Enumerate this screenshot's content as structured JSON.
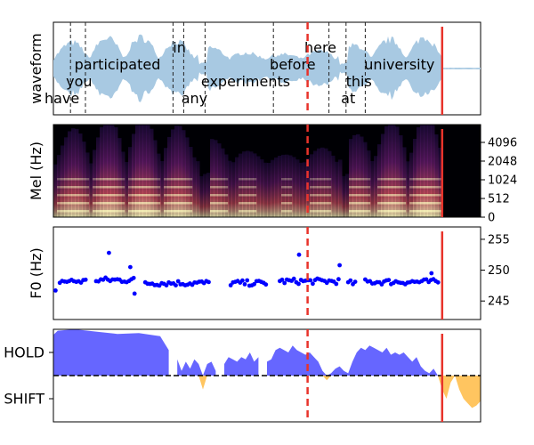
{
  "colors": {
    "waveform": "#a8c9e2",
    "word_boundary": "#222222",
    "current_time": "#e8332b",
    "prediction_marker": "#e8332b",
    "f0_points": "#0000ff",
    "hold_fill": "#6666ff",
    "shift_fill": "#ffc560",
    "spec_low": "#000004",
    "spec_mid": "#b73779",
    "spec_high": "#fcfdbf"
  },
  "chart_data": [
    {
      "type": "area",
      "panel": "waveform",
      "ylabel": "waveform",
      "words": [
        {
          "text": "have",
          "t": 0.02
        },
        {
          "text": "you",
          "t": 0.06
        },
        {
          "text": "participated",
          "t": 0.15
        },
        {
          "text": "in",
          "t": 0.295
        },
        {
          "text": "any",
          "t": 0.33
        },
        {
          "text": "experiments",
          "t": 0.45
        },
        {
          "text": "before",
          "t": 0.56
        },
        {
          "text": "here",
          "t": 0.625
        },
        {
          "text": "at",
          "t": 0.69
        },
        {
          "text": "this",
          "t": 0.715
        },
        {
          "text": "university",
          "t": 0.81
        }
      ],
      "word_boundaries": [
        0.04,
        0.075,
        0.28,
        0.305,
        0.355,
        0.515,
        0.645,
        0.685,
        0.73
      ],
      "current_time": 0.595,
      "prediction_marker": 0.91
    },
    {
      "type": "heatmap",
      "panel": "spectrogram",
      "ylabel": "Mel (Hz)",
      "yticks": [
        "0",
        "512",
        "1024",
        "2048",
        "4096"
      ],
      "current_time": 0.595,
      "prediction_marker": 0.91
    },
    {
      "type": "scatter",
      "panel": "f0",
      "ylabel": "F0 (Hz)",
      "yticks": [
        245,
        250,
        255
      ],
      "ylim": [
        242,
        257
      ],
      "segments": [
        {
          "start": 0.015,
          "end": 0.08,
          "mean": 248.2
        },
        {
          "start": 0.1,
          "end": 0.19,
          "mean": 248.4
        },
        {
          "start": 0.215,
          "end": 0.365,
          "mean": 247.9
        },
        {
          "start": 0.415,
          "end": 0.5,
          "mean": 247.9
        },
        {
          "start": 0.53,
          "end": 0.67,
          "mean": 248.2
        },
        {
          "start": 0.69,
          "end": 0.71,
          "mean": 247.9
        },
        {
          "start": 0.73,
          "end": 0.905,
          "mean": 248.1
        }
      ],
      "outliers": [
        [
          0.005,
          246.7
        ],
        [
          0.13,
          252.8
        ],
        [
          0.18,
          250.5
        ],
        [
          0.19,
          246.2
        ],
        [
          0.575,
          252.5
        ],
        [
          0.67,
          250.8
        ],
        [
          0.885,
          249.5
        ]
      ],
      "current_time": 0.595,
      "prediction_marker": 0.91
    },
    {
      "type": "area",
      "panel": "turn-taking",
      "yticks": [
        "HOLD",
        "SHIFT"
      ],
      "ylim": [
        -1,
        1
      ],
      "threshold": 0,
      "x": [
        0.0,
        0.01,
        0.05,
        0.1,
        0.15,
        0.2,
        0.25,
        0.27,
        0.28,
        0.29,
        0.3,
        0.31,
        0.32,
        0.33,
        0.34,
        0.35,
        0.36,
        0.37,
        0.38,
        0.39,
        0.4,
        0.41,
        0.42,
        0.43,
        0.44,
        0.45,
        0.46,
        0.47,
        0.48,
        0.49,
        0.5,
        0.51,
        0.52,
        0.53,
        0.54,
        0.55,
        0.56,
        0.57,
        0.58,
        0.59,
        0.6,
        0.61,
        0.62,
        0.63,
        0.64,
        0.65,
        0.66,
        0.67,
        0.68,
        0.69,
        0.7,
        0.71,
        0.72,
        0.73,
        0.74,
        0.75,
        0.76,
        0.77,
        0.78,
        0.79,
        0.8,
        0.81,
        0.82,
        0.83,
        0.84,
        0.85,
        0.86,
        0.87,
        0.88,
        0.89,
        0.9,
        0.91,
        0.92,
        0.93,
        0.94,
        0.95,
        0.96,
        0.97,
        0.98,
        0.99,
        1.0
      ],
      "values": [
        0.88,
        0.97,
        1.0,
        0.95,
        0.9,
        0.92,
        0.85,
        0.55,
        null,
        0.35,
        0.1,
        0.3,
        0.15,
        0.35,
        0.25,
        -0.3,
        0.25,
        0.3,
        0.1,
        null,
        0.25,
        0.4,
        0.35,
        0.3,
        0.4,
        0.35,
        0.5,
        0.3,
        0.4,
        null,
        0.3,
        0.35,
        0.55,
        0.6,
        0.55,
        0.5,
        0.65,
        0.55,
        0.5,
        0.45,
        0.5,
        0.4,
        0.3,
        0.1,
        -0.1,
        0.05,
        0.15,
        0.2,
        0.1,
        0.05,
        0.3,
        0.5,
        0.6,
        0.55,
        0.65,
        0.6,
        0.55,
        0.5,
        0.6,
        0.45,
        0.5,
        0.45,
        0.5,
        0.4,
        0.3,
        0.4,
        0.2,
        0.1,
        0.05,
        0.15,
        0.0,
        -0.3,
        -0.5,
        -0.15,
        0.0,
        -0.3,
        -0.5,
        -0.6,
        -0.7,
        -0.65,
        -0.55
      ],
      "current_time": 0.595,
      "prediction_marker": 0.91
    }
  ]
}
